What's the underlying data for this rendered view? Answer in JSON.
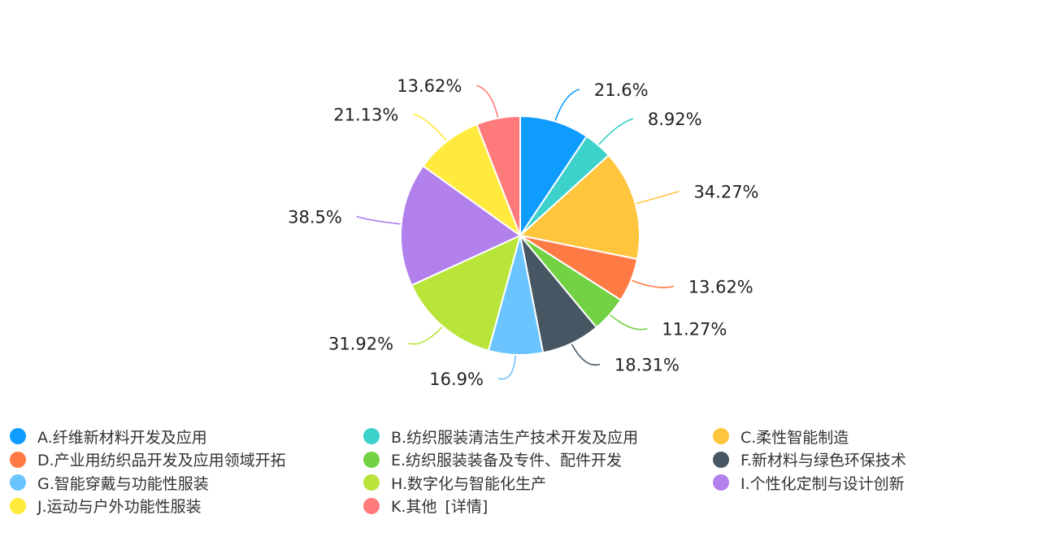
{
  "chart_data": {
    "type": "pie",
    "title": "",
    "categories": [
      "A.纤维新材料开发及应用",
      "B.纺织服装清洁生产技术开发及应用",
      "C.柔性智能制造",
      "D.产业用纺织品开发及应用领域开拓",
      "E.纺织服装装备及专件、配件开发",
      "F.新材料与绿色环保技术",
      "G.智能穿戴与功能性服装",
      "H.数字化与智能化生产",
      "I.个性化定制与设计创新",
      "J.运动与户外功能性服装",
      "K.其他"
    ],
    "values": [
      21.6,
      8.92,
      34.27,
      13.62,
      11.27,
      18.31,
      16.9,
      31.92,
      38.5,
      21.13,
      13.62
    ],
    "labels": [
      "21.6%",
      "8.92%",
      "34.27%",
      "13.62%",
      "11.27%",
      "18.31%",
      "16.9%",
      "31.92%",
      "38.5%",
      "21.13%",
      "13.62%"
    ],
    "colors": [
      "#0e9cff",
      "#3cd1cb",
      "#ffc53d",
      "#ff7b45",
      "#72d244",
      "#465763",
      "#6cc4ff",
      "#b9e53b",
      "#b180ec",
      "#ffea3d",
      "#ff7a7a"
    ],
    "legend_position": "bottom"
  },
  "legend": {
    "detail_label": "[详情]"
  }
}
